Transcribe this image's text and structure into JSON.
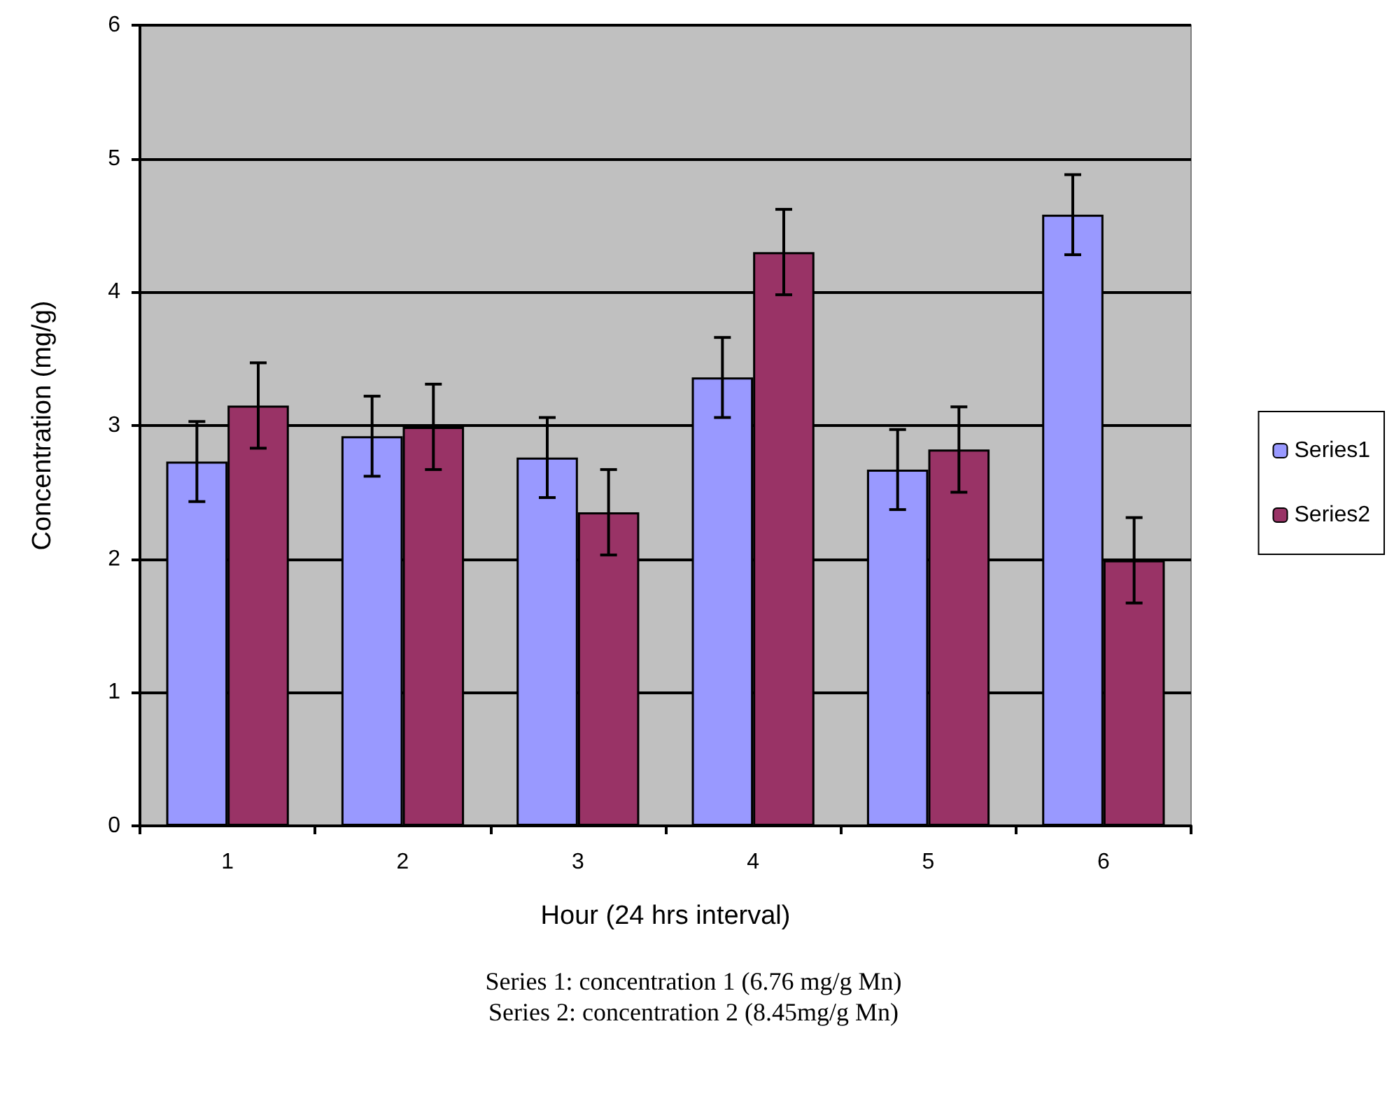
{
  "chart_data": {
    "type": "bar",
    "xlabel": "Hour (24 hrs interval)",
    "ylabel": "Concentration (mg/g)",
    "categories": [
      "1",
      "2",
      "3",
      "4",
      "5",
      "6"
    ],
    "series": [
      {
        "name": "Series1",
        "color": "#9999ff",
        "values": [
          2.73,
          2.92,
          2.76,
          3.36,
          2.67,
          4.58
        ],
        "errors": [
          0.3,
          0.3,
          0.3,
          0.3,
          0.3,
          0.3
        ]
      },
      {
        "name": "Series2",
        "color": "#993366",
        "values": [
          3.15,
          2.99,
          2.35,
          4.3,
          2.82,
          1.99
        ],
        "errors": [
          0.32,
          0.32,
          0.32,
          0.32,
          0.32,
          0.32
        ]
      }
    ],
    "ylim": [
      0,
      6
    ],
    "yticks": [
      0,
      1,
      2,
      3,
      4,
      5,
      6
    ],
    "grid": "y",
    "legend": "right",
    "annotations": [
      "Series 1: concentration 1 (6.76 mg/g Mn)",
      "Series 2: concentration 2 (8.45mg/g Mn)"
    ]
  }
}
